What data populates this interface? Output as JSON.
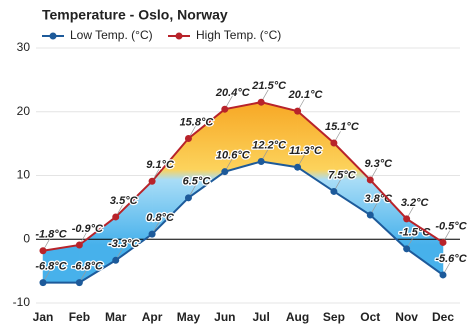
{
  "chart_data": {
    "type": "line",
    "title": "Temperature - Oslo, Norway",
    "categories": [
      "Jan",
      "Feb",
      "Mar",
      "Apr",
      "May",
      "Jun",
      "Jul",
      "Aug",
      "Sep",
      "Oct",
      "Nov",
      "Dec"
    ],
    "series": [
      {
        "name": "Low Temp. (°C)",
        "color": "#1d5a9a",
        "values": [
          -6.8,
          -6.8,
          -3.3,
          0.8,
          6.5,
          10.6,
          12.2,
          11.3,
          7.5,
          3.8,
          -1.5,
          -5.6
        ],
        "value_labels": [
          "-6.8°C",
          "-6.8°C",
          "-3.3°C",
          "0.8°C",
          "6.5°C",
          "10.6°C",
          "12.2°C",
          "11.3°C",
          "7.5°C",
          "3.8°C",
          "-1.5°C",
          "-5.6°C"
        ]
      },
      {
        "name": "High Temp. (°C)",
        "color": "#b8232a",
        "values": [
          -1.8,
          -0.9,
          3.5,
          9.1,
          15.8,
          20.4,
          21.5,
          20.1,
          15.1,
          9.3,
          3.2,
          -0.5
        ],
        "value_labels": [
          "-1.8°C",
          "-0.9°C",
          "3.5°C",
          "9.1°C",
          "15.8°C",
          "20.4°C",
          "21.5°C",
          "20.1°C",
          "15.1°C",
          "9.3°C",
          "3.2°C",
          "-0.5°C"
        ]
      }
    ],
    "ylim": [
      -10,
      30
    ],
    "yticks": [
      -10,
      0,
      10,
      20,
      30
    ],
    "grid": true,
    "legend": "top-left"
  }
}
